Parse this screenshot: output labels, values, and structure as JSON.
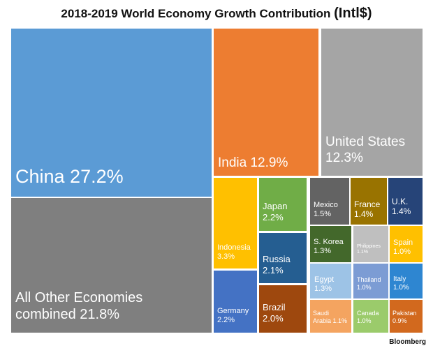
{
  "title_main": "2018-2019 World Economy Growth Contribution ",
  "title_unit": "(Intl$)",
  "source": "Bloomberg",
  "chart_data": {
    "type": "treemap",
    "title": "2018-2019 World Economy Growth Contribution (Intl$)",
    "unit": "%",
    "items": [
      {
        "name": "China",
        "value": 27.2,
        "label": "China 27.2%",
        "color": "#5B9BD5"
      },
      {
        "name": "All Other Economies combined",
        "value": 21.8,
        "label": "All Other Economies\ncombined 21.8%",
        "color": "#7F7F7F"
      },
      {
        "name": "India",
        "value": 12.9,
        "label": "India 12.9%",
        "color": "#ED7D31"
      },
      {
        "name": "United States",
        "value": 12.3,
        "label": "United States\n12.3%",
        "color": "#A5A5A5"
      },
      {
        "name": "Indonesia",
        "value": 3.3,
        "label": "Indonesia\n3.3%",
        "color": "#FFC000"
      },
      {
        "name": "Japan",
        "value": 2.2,
        "label": "Japan\n2.2%",
        "color": "#70AD47"
      },
      {
        "name": "Russia",
        "value": 2.1,
        "label": "Russia\n2.1%",
        "color": "#255E91"
      },
      {
        "name": "Germany",
        "value": 2.2,
        "label": "Germany\n2.2%",
        "color": "#4472C4"
      },
      {
        "name": "Brazil",
        "value": 2.0,
        "label": "Brazil\n2.0%",
        "color": "#9E480E"
      },
      {
        "name": "Mexico",
        "value": 1.5,
        "label": "Mexico\n1.5%",
        "color": "#636363"
      },
      {
        "name": "France",
        "value": 1.4,
        "label": "France\n1.4%",
        "color": "#997300"
      },
      {
        "name": "U.K.",
        "value": 1.4,
        "label": "U.K.\n1.4%",
        "color": "#264478"
      },
      {
        "name": "S. Korea",
        "value": 1.3,
        "label": "S. Korea\n1.3%",
        "color": "#43682B"
      },
      {
        "name": "Philippines",
        "value": 1.1,
        "label": "Philippines\n1.1%",
        "color": "#BFBFBF"
      },
      {
        "name": "Spain",
        "value": 1.0,
        "label": "Spain\n1.0%",
        "color": "#FFC000"
      },
      {
        "name": "Egypt",
        "value": 1.3,
        "label": "Egypt\n1.3%",
        "color": "#9DC3E6"
      },
      {
        "name": "Thailand",
        "value": 1.0,
        "label": "Thailand\n1.0%",
        "color": "#7C9CD4"
      },
      {
        "name": "Italy",
        "value": 1.0,
        "label": "Italy\n1.0%",
        "color": "#2E86D1"
      },
      {
        "name": "Saudi Arabia",
        "value": 1.1,
        "label": "Saudi\nArabia 1.1%",
        "color": "#F4A460"
      },
      {
        "name": "Canada",
        "value": 1.0,
        "label": "Canada\n1.0%",
        "color": "#9BCB6B"
      },
      {
        "name": "Pakistan",
        "value": 0.9,
        "label": "Pakistan\n0.9%",
        "color": "#D2691E"
      }
    ]
  }
}
